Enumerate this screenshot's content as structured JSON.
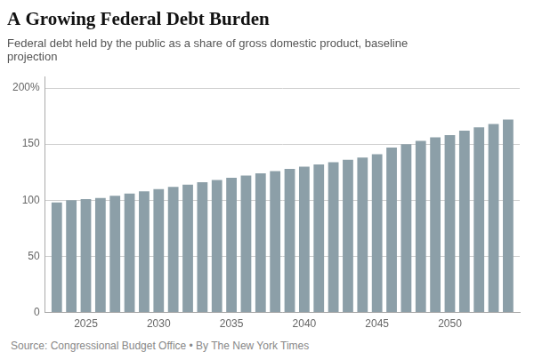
{
  "chart_data": {
    "type": "bar",
    "title": "A Growing Federal Debt Burden",
    "subtitle": "Federal debt held by the public as a share of gross domestic product, baseline\nprojection",
    "source": "Source: Congressional Budget Office • By The New York Times",
    "x": [
      2023,
      2024,
      2025,
      2026,
      2027,
      2028,
      2029,
      2030,
      2031,
      2032,
      2033,
      2034,
      2035,
      2036,
      2037,
      2038,
      2039,
      2040,
      2041,
      2042,
      2043,
      2044,
      2045,
      2046,
      2047,
      2048,
      2049,
      2050,
      2051,
      2052,
      2053,
      2054
    ],
    "values": [
      98,
      100,
      101,
      102,
      104,
      106,
      108,
      110,
      112,
      114,
      116,
      118,
      120,
      122,
      124,
      126,
      128,
      130,
      132,
      134,
      136,
      138,
      141,
      147,
      150,
      153,
      156,
      158,
      162,
      165,
      168,
      172
    ],
    "color": "#8c9fa8",
    "xlim": [
      2022.2,
      2054.8
    ],
    "xticks": [
      2025,
      2030,
      2035,
      2040,
      2045,
      2050
    ],
    "ylim": [
      0,
      210
    ],
    "yticks": [
      0,
      50,
      100,
      150,
      {
        "value": 200,
        "label": "200%"
      }
    ],
    "grid": "y"
  }
}
